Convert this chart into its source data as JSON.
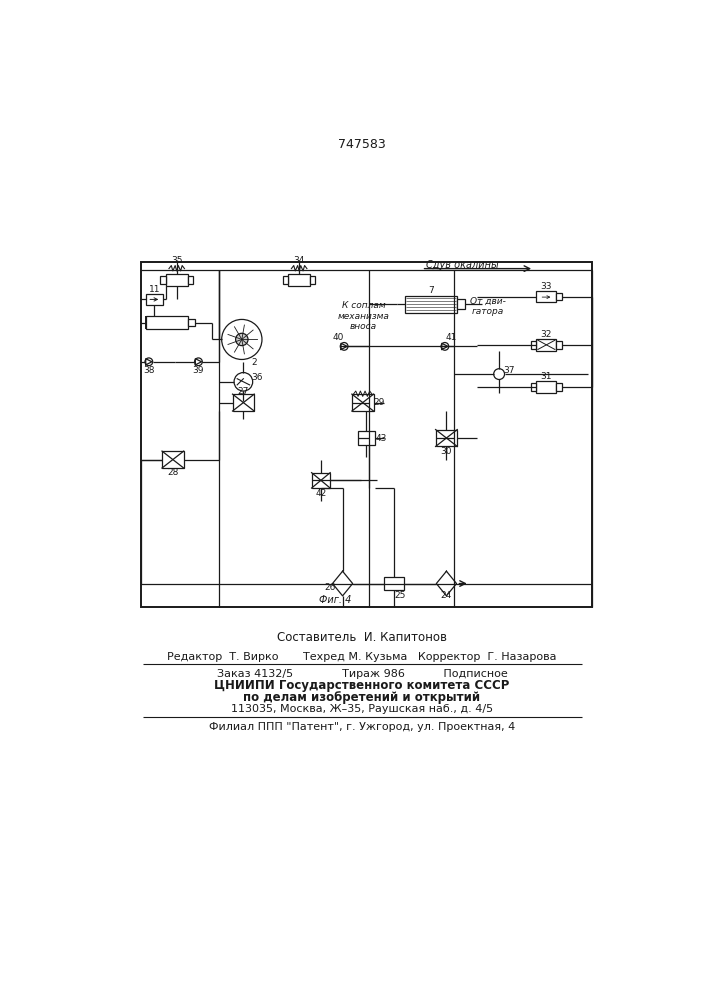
{
  "patent_number": "747583",
  "fig_label": "Фиг. 4",
  "arrow_label": "Сдув окалины",
  "label_k_sopl": "К соплам\nмеханизма\nвноса",
  "label_ot_dv": "От дви-\nгатора",
  "footer_line1": "Составитель  И. Капитонов",
  "footer_line2": "Редактор  Т. Вирко       Техред М. Кузьма   Корректор  Г. Назарова",
  "footer_line3": "Заказ 4132/5              Тираж 986           Подписное",
  "footer_line4": "ЦНИИПИ Государственного комитета СССР",
  "footer_line5": "по делам изобретений и открытий",
  "footer_line6": "113035, Москва, Ж–35, Раушская наб., д. 4/5",
  "footer_line7": "Филиал ППП \"Патент\", г. Ужгород, ул. Проектная, 4",
  "bg_color": "#ffffff",
  "line_color": "#1a1a1a"
}
